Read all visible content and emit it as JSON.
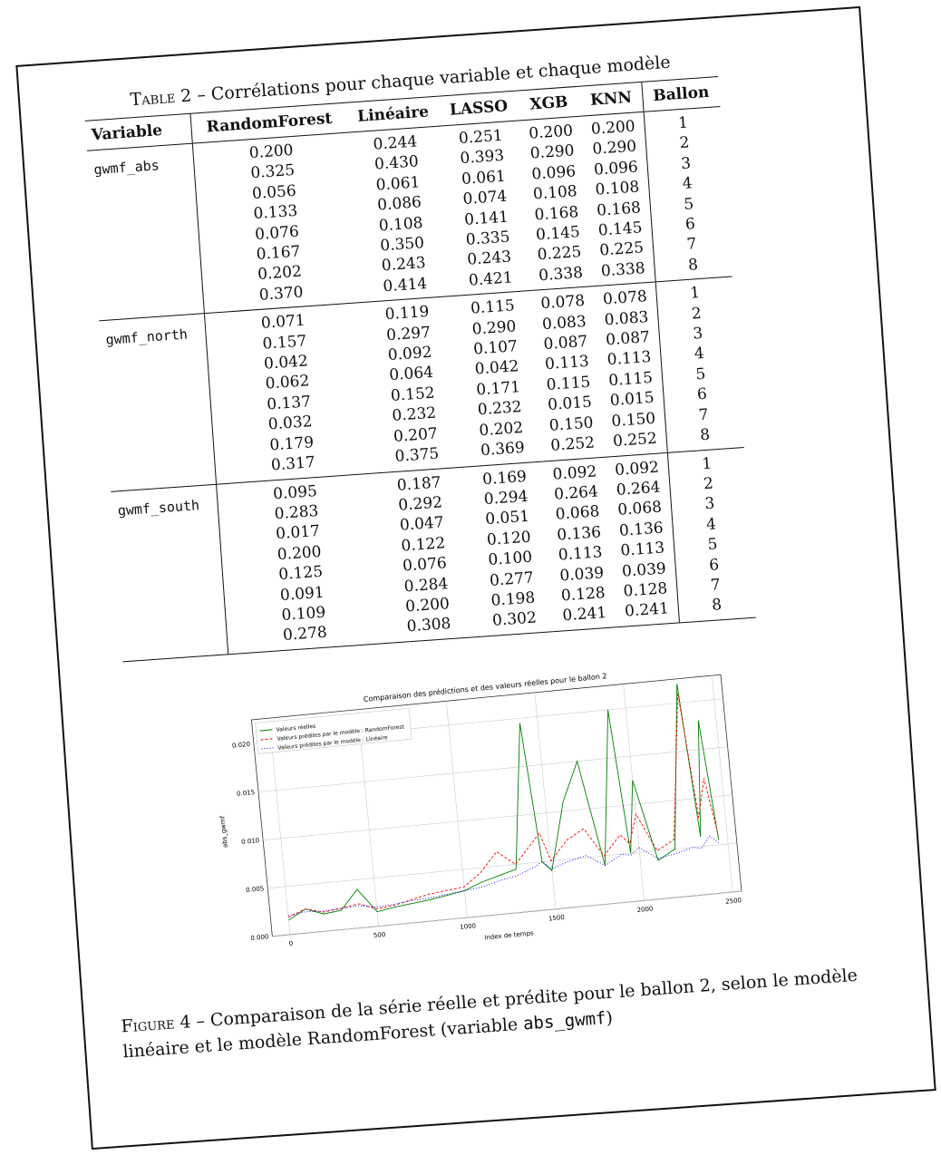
{
  "table": {
    "caption_label": "Table 2",
    "caption_text": " – Corrélations pour chaque variable et chaque modèle",
    "headers": [
      "Variable",
      "RandomForest",
      "Linéaire",
      "LASSO",
      "XGB",
      "KNN",
      "Ballon"
    ],
    "groups": [
      {
        "variable": "gwmf_abs",
        "randomforest": [
          "0.200",
          "0.325",
          "0.056",
          "0.133",
          "0.076",
          "0.167",
          "0.202",
          "0.370"
        ],
        "lineaire": [
          "0.244",
          "0.430",
          "0.061",
          "0.086",
          "0.108",
          "0.350",
          "0.243",
          "0.414"
        ],
        "lasso": [
          "0.251",
          "0.393",
          "0.061",
          "0.074",
          "0.141",
          "0.335",
          "0.243",
          "0.421"
        ],
        "xgb": [
          "0.200",
          "0.290",
          "0.096",
          "0.108",
          "0.168",
          "0.145",
          "0.225",
          "0.338"
        ],
        "knn": [
          "0.200",
          "0.290",
          "0.096",
          "0.108",
          "0.168",
          "0.145",
          "0.225",
          "0.338"
        ],
        "ballon": [
          "1",
          "2",
          "3",
          "4",
          "5",
          "6",
          "7",
          "8"
        ]
      },
      {
        "variable": "gwmf_north",
        "randomforest": [
          "0.071",
          "0.157",
          "0.042",
          "0.062",
          "0.137",
          "0.032",
          "0.179",
          "0.317"
        ],
        "lineaire": [
          "0.119",
          "0.297",
          "0.092",
          "0.064",
          "0.152",
          "0.232",
          "0.207",
          "0.375"
        ],
        "lasso": [
          "0.115",
          "0.290",
          "0.107",
          "0.042",
          "0.171",
          "0.232",
          "0.202",
          "0.369"
        ],
        "xgb": [
          "0.078",
          "0.083",
          "0.087",
          "0.113",
          "0.115",
          "0.015",
          "0.150",
          "0.252"
        ],
        "knn": [
          "0.078",
          "0.083",
          "0.087",
          "0.113",
          "0.115",
          "0.015",
          "0.150",
          "0.252"
        ],
        "ballon": [
          "1",
          "2",
          "3",
          "4",
          "5",
          "6",
          "7",
          "8"
        ]
      },
      {
        "variable": "gwmf_south",
        "randomforest": [
          "0.095",
          "0.283",
          "0.017",
          "0.200",
          "0.125",
          "0.091",
          "0.109",
          "0.278"
        ],
        "lineaire": [
          "0.187",
          "0.292",
          "0.047",
          "0.122",
          "0.076",
          "0.284",
          "0.200",
          "0.308"
        ],
        "lasso": [
          "0.169",
          "0.294",
          "0.051",
          "0.120",
          "0.100",
          "0.277",
          "0.198",
          "0.302"
        ],
        "xgb": [
          "0.092",
          "0.264",
          "0.068",
          "0.136",
          "0.113",
          "0.039",
          "0.128",
          "0.241"
        ],
        "knn": [
          "0.092",
          "0.264",
          "0.068",
          "0.136",
          "0.113",
          "0.039",
          "0.128",
          "0.241"
        ],
        "ballon": [
          "1",
          "2",
          "3",
          "4",
          "5",
          "6",
          "7",
          "8"
        ]
      }
    ]
  },
  "figure": {
    "caption_label": "Figure 4",
    "caption_text": " – Comparaison de la série réelle et prédite pour le ballon 2, selon le modèle linéaire et le modèle RandomForest (variable ",
    "caption_var": "abs_gwmf",
    "caption_end": ")"
  },
  "chart_data": {
    "type": "line",
    "title": "Comparaison des prédictions et des valeurs réelles pour le ballon 2",
    "xlabel": "Index de temps",
    "ylabel": "abs_gwmf",
    "xlim": [
      -100,
      2550
    ],
    "ylim": [
      0.0,
      0.0225
    ],
    "xticks": [
      "0",
      "500",
      "1000",
      "1500",
      "2000",
      "2500"
    ],
    "yticks": [
      "0.000",
      "0.005",
      "0.010",
      "0.015",
      "0.020"
    ],
    "grid": true,
    "legend_position": "top-left",
    "series": [
      {
        "name": "Valeurs réelles",
        "color": "#008000",
        "x": [
          0,
          100,
          200,
          300,
          400,
          500,
          600,
          700,
          800,
          900,
          1000,
          1100,
          1200,
          1300,
          1400,
          1450,
          1500,
          1600,
          1700,
          1800,
          1900,
          1950,
          2000,
          2100,
          2200,
          2300,
          2350,
          2400,
          2450
        ],
        "values": [
          0.0015,
          0.0025,
          0.0018,
          0.002,
          0.004,
          0.0015,
          0.0018,
          0.002,
          0.0022,
          0.0025,
          0.0028,
          0.0035,
          0.004,
          0.0045,
          0.0195,
          0.005,
          0.004,
          0.011,
          0.015,
          0.004,
          0.02,
          0.005,
          0.0125,
          0.004,
          0.005,
          0.022,
          0.006,
          0.018,
          0.0055
        ]
      },
      {
        "name": "Valeurs prédites par le modèle : RandomForest",
        "color": "#ff0000",
        "x": [
          0,
          100,
          200,
          300,
          400,
          500,
          600,
          700,
          800,
          900,
          1000,
          1100,
          1200,
          1300,
          1400,
          1450,
          1500,
          1600,
          1700,
          1800,
          1900,
          1950,
          2000,
          2100,
          2200,
          2300,
          2350,
          2400,
          2450
        ],
        "values": [
          0.0018,
          0.0025,
          0.002,
          0.0022,
          0.0025,
          0.0018,
          0.002,
          0.0024,
          0.0028,
          0.003,
          0.0032,
          0.0045,
          0.0065,
          0.005,
          0.007,
          0.008,
          0.005,
          0.007,
          0.008,
          0.005,
          0.007,
          0.006,
          0.009,
          0.005,
          0.006,
          0.021,
          0.008,
          0.012,
          0.006
        ]
      },
      {
        "name": "Valeurs prédites par le modèle : Linéaire",
        "color": "#0000ff",
        "x": [
          0,
          100,
          200,
          300,
          400,
          500,
          600,
          700,
          800,
          900,
          1000,
          1100,
          1200,
          1300,
          1400,
          1450,
          1500,
          1600,
          1700,
          1800,
          1900,
          1950,
          2000,
          2100,
          2200,
          2300,
          2350,
          2400,
          2450
        ],
        "values": [
          0.002,
          0.0022,
          0.0021,
          0.0022,
          0.0023,
          0.002,
          0.0021,
          0.0023,
          0.0024,
          0.0026,
          0.0028,
          0.003,
          0.0035,
          0.0038,
          0.0045,
          0.005,
          0.0042,
          0.0048,
          0.0052,
          0.004,
          0.005,
          0.0048,
          0.0055,
          0.0042,
          0.0045,
          0.005,
          0.0048,
          0.006,
          0.0052
        ]
      }
    ]
  }
}
